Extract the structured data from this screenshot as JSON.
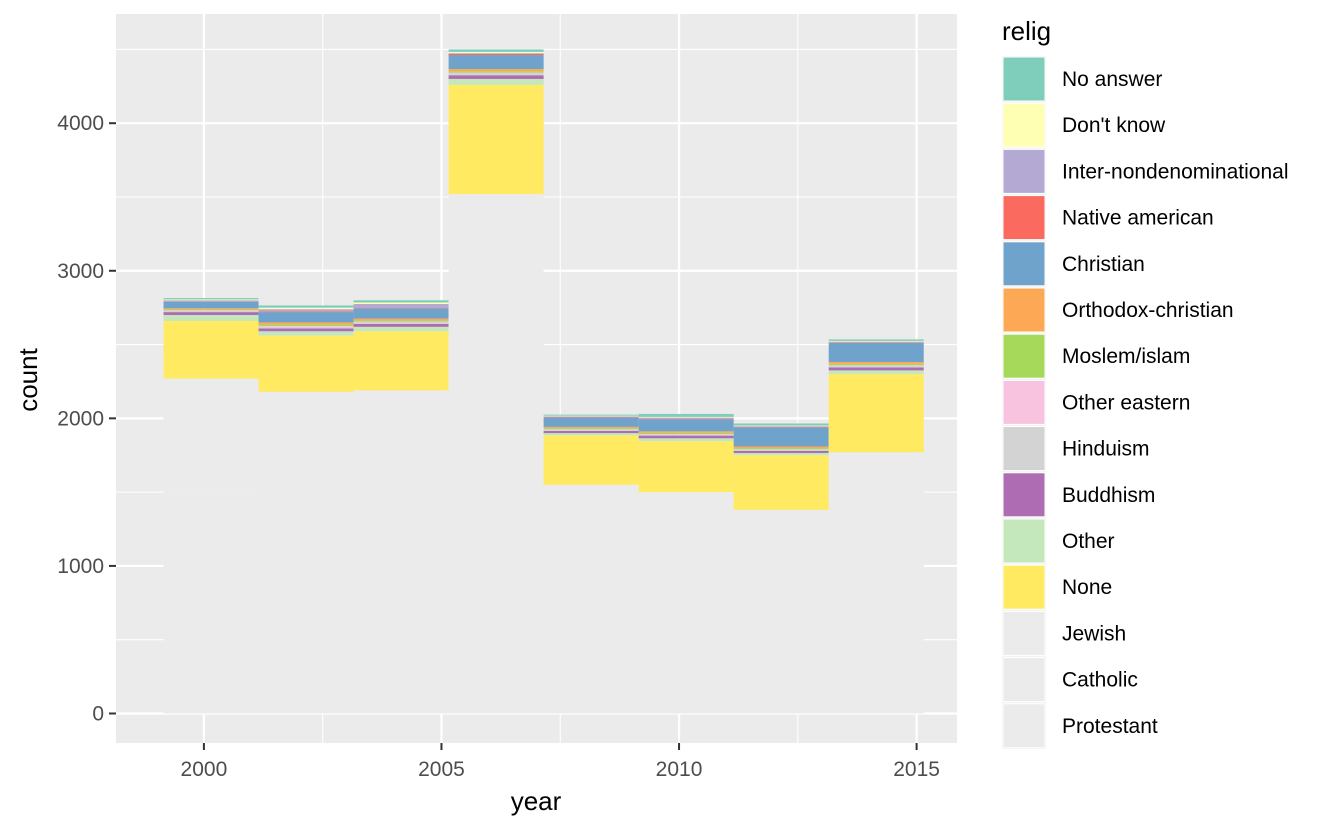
{
  "chart_data": {
    "type": "bar",
    "subtype": "stacked-histogram",
    "xlabel": "year",
    "ylabel": "count",
    "xlim": [
      1998.15,
      2015.85
    ],
    "ylim": [
      -200,
      4740
    ],
    "xticks": [
      2000,
      2005,
      2010,
      2015
    ],
    "yticks": [
      0,
      1000,
      2000,
      3000,
      4000
    ],
    "grid": true,
    "legend": {
      "title": "relig",
      "placement": "right",
      "entries": [
        {
          "name": "No answer",
          "color": "#7fcdbb"
        },
        {
          "name": "Don't know",
          "color": "#ffffb3"
        },
        {
          "name": "Inter-nondenominational",
          "color": "#b3a9d3"
        },
        {
          "name": "Native american",
          "color": "#fb6a5f"
        },
        {
          "name": "Christian",
          "color": "#6fa3cc"
        },
        {
          "name": "Orthodox-christian",
          "color": "#fda855"
        },
        {
          "name": "Moslem/islam",
          "color": "#a6d85a"
        },
        {
          "name": "Other eastern",
          "color": "#f8c3de"
        },
        {
          "name": "Hinduism",
          "color": "#d3d3d3"
        },
        {
          "name": "Buddhism",
          "color": "#ae6db3"
        },
        {
          "name": "Other",
          "color": "#c4e8bb"
        },
        {
          "name": "None",
          "color": "#ffea61"
        },
        {
          "name": "Jewish",
          "color": "#ebebeb"
        },
        {
          "name": "Catholic",
          "color": "#ebebeb"
        },
        {
          "name": "Protestant",
          "color": "#ebebeb"
        }
      ]
    },
    "bins": [
      {
        "x_start": 1999.15,
        "x_end": 2001.15,
        "segments": {
          "Protestant": 1500,
          "Catholic": 640,
          "Jewish": 130,
          "None": 390,
          "Other": 40,
          "Buddhism": 20,
          "Hinduism": 8,
          "Other eastern": 4,
          "Moslem/islam": 6,
          "Orthodox-christian": 8,
          "Christian": 45,
          "Native american": 2,
          "Inter-nondenominational": 7,
          "Don't know": 6,
          "No answer": 9
        }
      },
      {
        "x_start": 2001.15,
        "x_end": 2003.15,
        "segments": {
          "Protestant": 1420,
          "Catholic": 640,
          "Jewish": 120,
          "None": 380,
          "Other": 30,
          "Buddhism": 20,
          "Hinduism": 10,
          "Other eastern": 5,
          "Moslem/islam": 10,
          "Orthodox-christian": 15,
          "Christian": 70,
          "Native american": 5,
          "Inter-nondenominational": 15,
          "Don't know": 10,
          "No answer": 15
        }
      },
      {
        "x_start": 2003.15,
        "x_end": 2005.15,
        "segments": {
          "Protestant": 1440,
          "Catholic": 640,
          "Jewish": 110,
          "None": 400,
          "Other": 30,
          "Buddhism": 20,
          "Hinduism": 12,
          "Other eastern": 4,
          "Moslem/islam": 8,
          "Orthodox-christian": 12,
          "Christian": 70,
          "Native american": 4,
          "Inter-nondenominational": 25,
          "Don't know": 10,
          "No answer": 15
        }
      },
      {
        "x_start": 2005.15,
        "x_end": 2007.15,
        "segments": {
          "Protestant": 2350,
          "Catholic": 1030,
          "Jewish": 140,
          "None": 740,
          "Other": 40,
          "Buddhism": 25,
          "Hinduism": 12,
          "Other eastern": 5,
          "Moslem/islam": 10,
          "Orthodox-christian": 15,
          "Christian": 95,
          "Native american": 8,
          "Inter-nondenominational": 5,
          "Don't know": 8,
          "No answer": 17
        }
      },
      {
        "x_start": 2007.15,
        "x_end": 2009.15,
        "segments": {
          "Protestant": 1050,
          "Catholic": 440,
          "Jewish": 60,
          "None": 335,
          "Other": 15,
          "Buddhism": 15,
          "Hinduism": 8,
          "Other eastern": 3,
          "Moslem/islam": 8,
          "Orthodox-christian": 8,
          "Christian": 65,
          "Native american": 3,
          "Inter-nondenominational": 4,
          "Don't know": 4,
          "No answer": 7
        }
      },
      {
        "x_start": 2009.15,
        "x_end": 2011.15,
        "segments": {
          "Protestant": 1000,
          "Catholic": 440,
          "Jewish": 60,
          "None": 345,
          "Other": 20,
          "Buddhism": 18,
          "Hinduism": 8,
          "Other eastern": 3,
          "Moslem/islam": 8,
          "Orthodox-christian": 10,
          "Christian": 80,
          "Native american": 3,
          "Inter-nondenominational": 10,
          "Don't know": 5,
          "No answer": 20
        }
      },
      {
        "x_start": 2011.15,
        "x_end": 2013.15,
        "segments": {
          "Protestant": 920,
          "Catholic": 410,
          "Jewish": 50,
          "None": 370,
          "Other": 15,
          "Buddhism": 15,
          "Hinduism": 8,
          "Other eastern": 3,
          "Moslem/islam": 8,
          "Orthodox-christian": 10,
          "Christian": 130,
          "Native american": 3,
          "Inter-nondenominational": 5,
          "Don't know": 4,
          "No answer": 14
        }
      },
      {
        "x_start": 2013.15,
        "x_end": 2015.15,
        "segments": {
          "Protestant": 1150,
          "Catholic": 560,
          "Jewish": 60,
          "None": 530,
          "Other": 25,
          "Buddhism": 20,
          "Hinduism": 10,
          "Other eastern": 5,
          "Moslem/islam": 10,
          "Orthodox-christian": 12,
          "Christian": 130,
          "Native american": 3,
          "Inter-nondenominational": 5,
          "Don't know": 5,
          "No answer": 10
        }
      }
    ]
  }
}
